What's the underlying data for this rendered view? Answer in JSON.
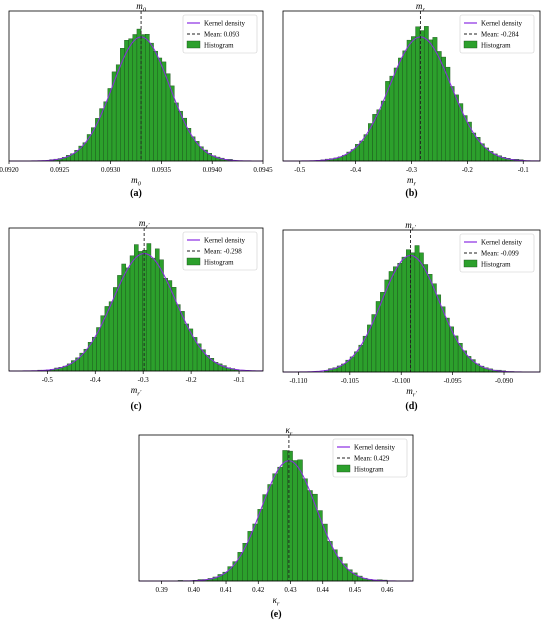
{
  "legend": {
    "kde_label": "Kernel density",
    "hist_label": "Histogram",
    "mean_prefix": "Mean: "
  },
  "colors": {
    "bar_fill": "#2ca02c",
    "bar_edge": "#1a4a1a",
    "kde_line": "#8a2be2",
    "mean_line": "#222222",
    "frame": "#000000"
  },
  "chart_data": [
    {
      "type": "bar",
      "panel_label": "(a)",
      "xlabel": "m0",
      "title": "m0",
      "mean": 0.0933,
      "mean_text": "0.093",
      "xlim": [
        0.092,
        0.0945
      ],
      "xticks": [
        0.092,
        0.0925,
        0.093,
        0.0935,
        0.094,
        0.0945
      ],
      "xtick_labels": [
        "0.0920",
        "0.0925",
        "0.0930",
        "0.0935",
        "0.0940",
        "0.0945"
      ],
      "sd": 0.00028,
      "bins": [
        0.0924,
        0.0942,
        44
      ],
      "grid": false,
      "legend_position": "top-right"
    },
    {
      "type": "bar",
      "panel_label": "(b)",
      "xlabel": "mr",
      "title": "mr",
      "mean": -0.284,
      "mean_text": "-0.284",
      "xlim": [
        -0.53,
        -0.07
      ],
      "xticks": [
        -0.5,
        -0.4,
        -0.3,
        -0.2,
        -0.1
      ],
      "xtick_labels": [
        "-0.5",
        "-0.4",
        "-0.3",
        "-0.2",
        "-0.1"
      ],
      "sd": 0.055,
      "bins": [
        -0.47,
        -0.1,
        48
      ],
      "grid": false,
      "legend_position": "top-right"
    },
    {
      "type": "bar",
      "panel_label": "(c)",
      "xlabel": "mr'",
      "title": "mr'",
      "mean": -0.298,
      "mean_text": "-0.298",
      "xlim": [
        -0.58,
        -0.05
      ],
      "xticks": [
        -0.5,
        -0.4,
        -0.3,
        -0.2,
        -0.1
      ],
      "xtick_labels": [
        "-0.5",
        "-0.4",
        "-0.3",
        "-0.2",
        "-0.1"
      ],
      "sd": 0.065,
      "bins": [
        -0.52,
        -0.1,
        48
      ],
      "grid": false,
      "legend_position": "top-right"
    },
    {
      "type": "bar",
      "panel_label": "(d)",
      "xlabel": "mr'",
      "title": "mr'",
      "mean": -0.0991,
      "mean_text": "-0.099",
      "xlim": [
        -0.1115,
        -0.0865
      ],
      "xticks": [
        -0.11,
        -0.105,
        -0.1,
        -0.095,
        -0.09
      ],
      "xtick_labels": [
        "-0.110",
        "-0.105",
        "-0.100",
        "-0.095",
        "-0.090"
      ],
      "sd": 0.0028,
      "bins": [
        -0.1075,
        -0.089,
        44
      ],
      "grid": false,
      "legend_position": "top-right"
    },
    {
      "type": "bar",
      "panel_label": "(e)",
      "xlabel": "κr",
      "title": "κr",
      "mean": 0.4295,
      "mean_text": "0.429",
      "xlim": [
        0.383,
        0.468
      ],
      "xticks": [
        0.39,
        0.4,
        0.41,
        0.42,
        0.43,
        0.44,
        0.45,
        0.46
      ],
      "xtick_labels": [
        "0.39",
        "0.40",
        "0.41",
        "0.42",
        "0.43",
        "0.44",
        "0.45",
        "0.46"
      ],
      "sd": 0.0085,
      "bins": [
        0.392,
        0.46,
        44
      ],
      "grid": false,
      "legend_position": "top-right"
    }
  ]
}
